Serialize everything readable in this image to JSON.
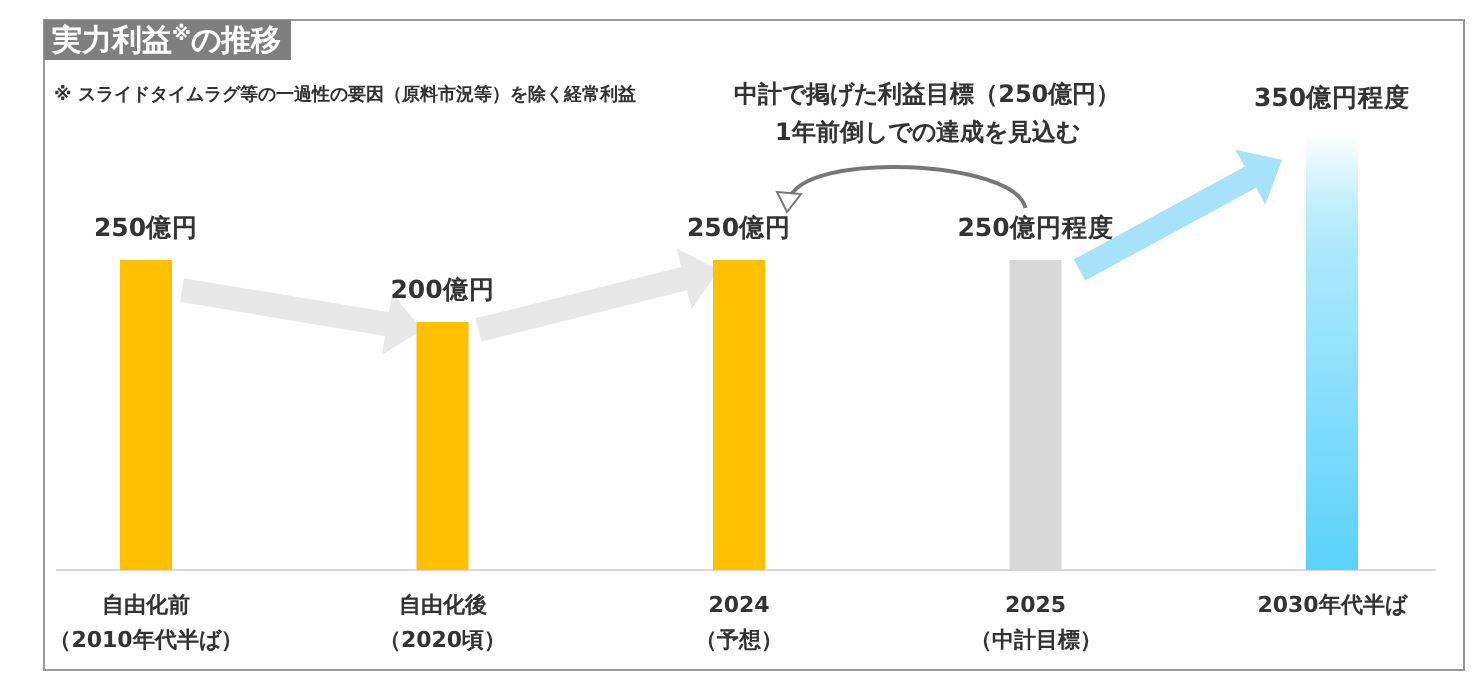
{
  "chart_data": {
    "type": "bar",
    "title": "実力利益$^{※}$の推移",
    "categories": [
      "自由化前（2010年代半ば）",
      "自由化後（2020頃）",
      "2024（予想）",
      "2025（中計目標）",
      "2030年代半ば"
    ],
    "values": [
      250,
      200,
      250,
      250,
      350
    ],
    "value_labels": [
      "250億円",
      "200億円",
      "250億円",
      "250億円程度",
      "350億円程度"
    ],
    "colors": [
      "#ffc000",
      "#ffc000",
      "#ffc000",
      "#d9d9d9",
      "#5ad2fa"
    ],
    "annotations": [
      "※ スライドタイムラグ等の一過性の要因（原料市況等）を除く経常利益",
      "中計で掲げた利益目標（250億円）\n1年前倒しでの達成を見込む"
    ]
  }
}
